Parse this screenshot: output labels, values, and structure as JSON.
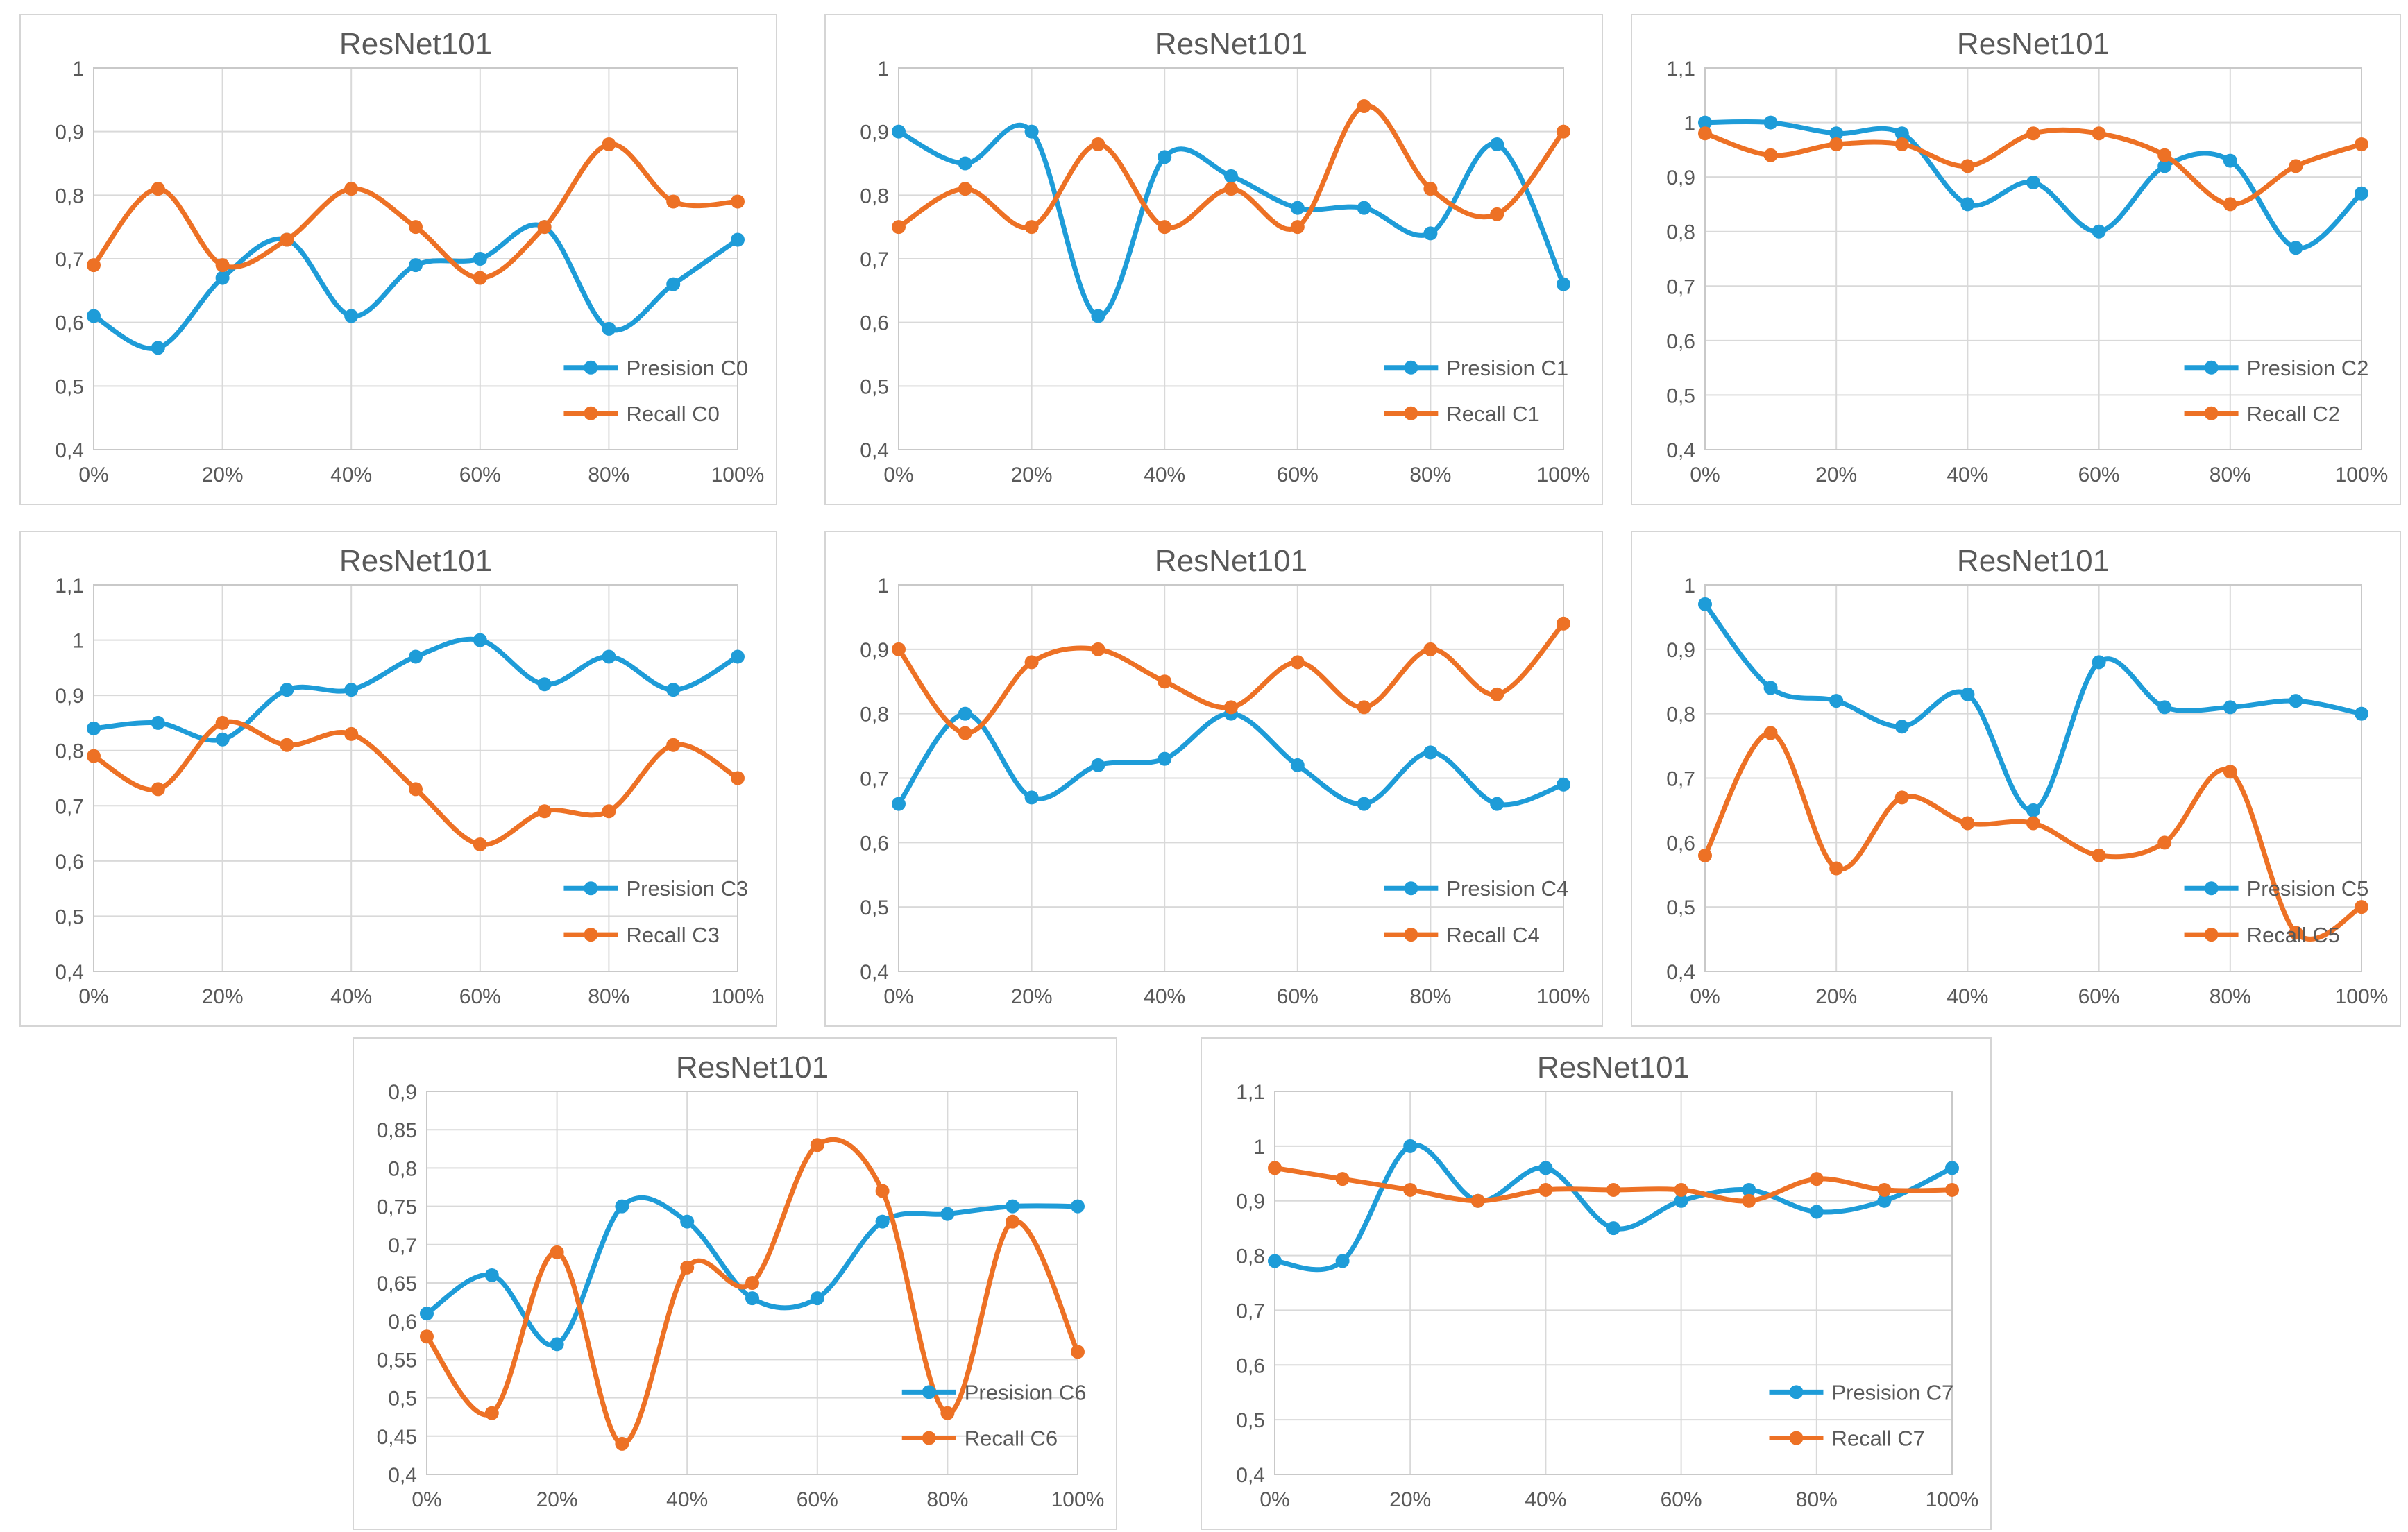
{
  "colors": {
    "precision": "#1e9cd8",
    "recall": "#ed7125",
    "grid": "#d9d9d9",
    "plot_border": "#c9c9c9",
    "text": "#595959"
  },
  "chart_data": [
    {
      "id": "c0",
      "type": "line",
      "title": "ResNet101",
      "categories": [
        "0%",
        "10%",
        "20%",
        "30%",
        "40%",
        "50%",
        "60%",
        "70%",
        "80%",
        "90%",
        "100%"
      ],
      "x_tick_labels": [
        "0%",
        "20%",
        "40%",
        "60%",
        "80%",
        "100%"
      ],
      "ylim": [
        0.4,
        1.0
      ],
      "y_tick_labels": [
        "1",
        "0,9",
        "0,8",
        "0,7",
        "0,6",
        "0,5",
        "0,4"
      ],
      "grid": true,
      "legend_position": "bottom-right",
      "series": [
        {
          "name": "Presision C0",
          "color": "#1e9cd8",
          "values": [
            0.61,
            0.56,
            0.67,
            0.73,
            0.61,
            0.69,
            0.7,
            0.75,
            0.59,
            0.66,
            0.73
          ]
        },
        {
          "name": "Recall C0",
          "color": "#ed7125",
          "values": [
            0.69,
            0.81,
            0.69,
            0.73,
            0.81,
            0.75,
            0.67,
            0.75,
            0.88,
            0.79,
            0.79
          ]
        }
      ]
    },
    {
      "id": "c1",
      "type": "line",
      "title": "ResNet101",
      "categories": [
        "0%",
        "10%",
        "20%",
        "30%",
        "40%",
        "50%",
        "60%",
        "70%",
        "80%",
        "90%",
        "100%"
      ],
      "x_tick_labels": [
        "0%",
        "20%",
        "40%",
        "60%",
        "80%",
        "100%"
      ],
      "ylim": [
        0.4,
        1.0
      ],
      "y_tick_labels": [
        "1",
        "0,9",
        "0,8",
        "0,7",
        "0,6",
        "0,5",
        "0,4"
      ],
      "grid": true,
      "legend_position": "bottom-right",
      "series": [
        {
          "name": "Presision C1",
          "color": "#1e9cd8",
          "values": [
            0.9,
            0.85,
            0.9,
            0.61,
            0.86,
            0.83,
            0.78,
            0.78,
            0.74,
            0.88,
            0.66
          ]
        },
        {
          "name": "Recall C1",
          "color": "#ed7125",
          "values": [
            0.75,
            0.81,
            0.75,
            0.88,
            0.75,
            0.81,
            0.75,
            0.94,
            0.81,
            0.77,
            0.9
          ]
        }
      ]
    },
    {
      "id": "c2",
      "type": "line",
      "title": "ResNet101",
      "categories": [
        "0%",
        "10%",
        "20%",
        "30%",
        "40%",
        "50%",
        "60%",
        "70%",
        "80%",
        "90%",
        "100%"
      ],
      "x_tick_labels": [
        "0%",
        "20%",
        "40%",
        "60%",
        "80%",
        "100%"
      ],
      "ylim": [
        0.4,
        1.1
      ],
      "y_tick_labels": [
        "1,1",
        "1",
        "0,9",
        "0,8",
        "0,7",
        "0,6",
        "0,5",
        "0,4"
      ],
      "grid": true,
      "legend_position": "bottom-right",
      "series": [
        {
          "name": "Presision C2",
          "color": "#1e9cd8",
          "values": [
            1.0,
            1.0,
            0.98,
            0.98,
            0.85,
            0.89,
            0.8,
            0.92,
            0.93,
            0.77,
            0.87
          ]
        },
        {
          "name": "Recall C2",
          "color": "#ed7125",
          "values": [
            0.98,
            0.94,
            0.96,
            0.96,
            0.92,
            0.98,
            0.98,
            0.94,
            0.85,
            0.92,
            0.96
          ]
        }
      ]
    },
    {
      "id": "c3",
      "type": "line",
      "title": "ResNet101",
      "categories": [
        "0%",
        "10%",
        "20%",
        "30%",
        "40%",
        "50%",
        "60%",
        "70%",
        "80%",
        "90%",
        "100%"
      ],
      "x_tick_labels": [
        "0%",
        "20%",
        "40%",
        "60%",
        "80%",
        "100%"
      ],
      "ylim": [
        0.4,
        1.1
      ],
      "y_tick_labels": [
        "1,1",
        "1",
        "0,9",
        "0,8",
        "0,7",
        "0,6",
        "0,5",
        "0,4"
      ],
      "grid": true,
      "legend_position": "bottom-right",
      "series": [
        {
          "name": "Presision C3",
          "color": "#1e9cd8",
          "values": [
            0.84,
            0.85,
            0.82,
            0.91,
            0.91,
            0.97,
            1.0,
            0.92,
            0.97,
            0.91,
            0.97
          ]
        },
        {
          "name": "Recall C3",
          "color": "#ed7125",
          "values": [
            0.79,
            0.73,
            0.85,
            0.81,
            0.83,
            0.73,
            0.63,
            0.69,
            0.69,
            0.81,
            0.75
          ]
        }
      ]
    },
    {
      "id": "c4",
      "type": "line",
      "title": "ResNet101",
      "categories": [
        "0%",
        "10%",
        "20%",
        "30%",
        "40%",
        "50%",
        "60%",
        "70%",
        "80%",
        "90%",
        "100%"
      ],
      "x_tick_labels": [
        "0%",
        "20%",
        "40%",
        "60%",
        "80%",
        "100%"
      ],
      "ylim": [
        0.4,
        1.0
      ],
      "y_tick_labels": [
        "1",
        "0,9",
        "0,8",
        "0,7",
        "0,6",
        "0,5",
        "0,4"
      ],
      "grid": true,
      "legend_position": "bottom-right",
      "series": [
        {
          "name": "Presision C4",
          "color": "#1e9cd8",
          "values": [
            0.66,
            0.8,
            0.67,
            0.72,
            0.73,
            0.8,
            0.72,
            0.66,
            0.74,
            0.66,
            0.69
          ]
        },
        {
          "name": "Recall C4",
          "color": "#ed7125",
          "values": [
            0.9,
            0.77,
            0.88,
            0.9,
            0.85,
            0.81,
            0.88,
            0.81,
            0.9,
            0.83,
            0.94
          ]
        }
      ]
    },
    {
      "id": "c5",
      "type": "line",
      "title": "ResNet101",
      "categories": [
        "0%",
        "10%",
        "20%",
        "30%",
        "40%",
        "50%",
        "60%",
        "70%",
        "80%",
        "90%",
        "100%"
      ],
      "x_tick_labels": [
        "0%",
        "20%",
        "40%",
        "60%",
        "80%",
        "100%"
      ],
      "ylim": [
        0.4,
        1.0
      ],
      "y_tick_labels": [
        "1",
        "0,9",
        "0,8",
        "0,7",
        "0,6",
        "0,5",
        "0,4"
      ],
      "grid": true,
      "legend_position": "bottom-right",
      "series": [
        {
          "name": "Presision C5",
          "color": "#1e9cd8",
          "values": [
            0.97,
            0.84,
            0.82,
            0.78,
            0.83,
            0.65,
            0.88,
            0.81,
            0.81,
            0.82,
            0.8
          ]
        },
        {
          "name": "Recall C5",
          "color": "#ed7125",
          "values": [
            0.58,
            0.77,
            0.56,
            0.67,
            0.63,
            0.63,
            0.58,
            0.6,
            0.71,
            0.46,
            0.5
          ]
        }
      ]
    },
    {
      "id": "c6",
      "type": "line",
      "title": "ResNet101",
      "categories": [
        "0%",
        "10%",
        "20%",
        "30%",
        "40%",
        "50%",
        "60%",
        "70%",
        "80%",
        "90%",
        "100%"
      ],
      "x_tick_labels": [
        "0%",
        "20%",
        "40%",
        "60%",
        "80%",
        "100%"
      ],
      "ylim": [
        0.4,
        0.9
      ],
      "y_tick_labels": [
        "0,9",
        "0,85",
        "0,8",
        "0,75",
        "0,7",
        "0,65",
        "0,6",
        "0,55",
        "0,5",
        "0,45",
        "0,4"
      ],
      "grid": true,
      "legend_position": "bottom-right",
      "series": [
        {
          "name": "Presision C6",
          "color": "#1e9cd8",
          "values": [
            0.61,
            0.66,
            0.57,
            0.75,
            0.73,
            0.63,
            0.63,
            0.73,
            0.74,
            0.75,
            0.75
          ]
        },
        {
          "name": "Recall C6",
          "color": "#ed7125",
          "values": [
            0.58,
            0.48,
            0.69,
            0.44,
            0.67,
            0.65,
            0.83,
            0.77,
            0.48,
            0.73,
            0.56
          ]
        }
      ]
    },
    {
      "id": "c7",
      "type": "line",
      "title": "ResNet101",
      "categories": [
        "0%",
        "10%",
        "20%",
        "30%",
        "40%",
        "50%",
        "60%",
        "70%",
        "80%",
        "90%",
        "100%"
      ],
      "x_tick_labels": [
        "0%",
        "20%",
        "40%",
        "60%",
        "80%",
        "100%"
      ],
      "ylim": [
        0.4,
        1.1
      ],
      "y_tick_labels": [
        "1,1",
        "1",
        "0,9",
        "0,8",
        "0,7",
        "0,6",
        "0,5",
        "0,4"
      ],
      "grid": true,
      "legend_position": "bottom-right",
      "series": [
        {
          "name": "Presision C7",
          "color": "#1e9cd8",
          "values": [
            0.79,
            0.79,
            1.0,
            0.9,
            0.96,
            0.85,
            0.9,
            0.92,
            0.88,
            0.9,
            0.96
          ]
        },
        {
          "name": "Recall C7",
          "color": "#ed7125",
          "values": [
            0.96,
            0.94,
            0.92,
            0.9,
            0.92,
            0.92,
            0.92,
            0.9,
            0.94,
            0.92,
            0.92
          ]
        }
      ]
    }
  ]
}
